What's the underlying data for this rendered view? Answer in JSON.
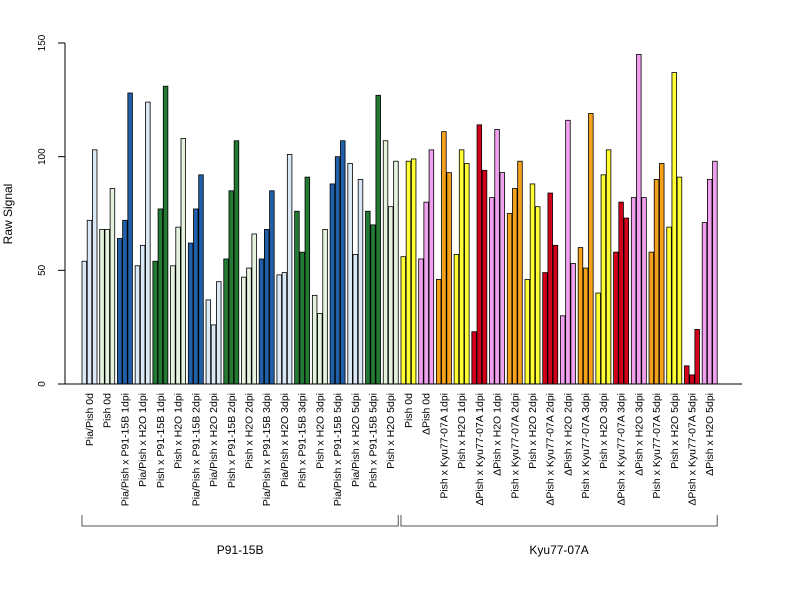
{
  "chart_data": {
    "type": "bar",
    "ylabel": "Raw Signal",
    "xlabel": "",
    "ylim": [
      0,
      150
    ],
    "yticks": [
      0,
      50,
      100,
      150
    ],
    "bars_per_group": 3,
    "categories": [
      "Pia/Pish 0d",
      "Pish 0d",
      "Pia/Pish x P91-15B 1dpi",
      "Pia/Pish x H2O 1dpi",
      "Pish x P91-15B 1dpi",
      "Pish x H2O 1dpi",
      "Pia/Pish x P91-15B 2dpi",
      "Pia/Pish x H2O 2dpi",
      "Pish x P91-15B 2dpi",
      "Pish x H2O 2dpi",
      "Pia/Pish x P91-15B 3dpi",
      "Pia/Pish x H2O 3dpi",
      "Pish x P91-15B 3dpi",
      "Pish x H2O 3dpi",
      "Pia/Pish x P91-15B 5dpi",
      "Pia/Pish x H2O 5dpi",
      "Pish x P91-15B 5dpi",
      "Pish x H2O 5dpi",
      "Pish 0d",
      "ΔPish 0d",
      "Pish x Kyu77-07A 1dpi",
      "Pish x H2O 1dpi",
      "ΔPish x Kyu77-07A 1dpi",
      "ΔPish x H2O 1dpi",
      "Pish x Kyu77-07A 2dpi",
      "Pish x H2O 2dpi",
      "ΔPish x Kyu77-07A 2dpi",
      "ΔPish x H2O 2dpi",
      "Pish x Kyu77-07A 3dpi",
      "Pish x H2O 3dpi",
      "ΔPish x Kyu77-07A 3dpi",
      "ΔPish x H2O 3dpi",
      "Pish x Kyu77-07A 5dpi",
      "Pish x H2O 5dpi",
      "ΔPish x Kyu77-07A 5dpi",
      "ΔPish x H2O 5dpi"
    ],
    "values": [
      [
        54,
        72,
        103
      ],
      [
        68,
        68,
        86
      ],
      [
        64,
        72,
        128
      ],
      [
        52,
        61,
        124
      ],
      [
        54,
        77,
        131
      ],
      [
        52,
        69,
        108
      ],
      [
        62,
        77,
        92
      ],
      [
        37,
        26,
        45
      ],
      [
        55,
        85,
        107
      ],
      [
        47,
        51,
        66
      ],
      [
        55,
        68,
        85
      ],
      [
        48,
        49,
        101
      ],
      [
        76,
        58,
        91
      ],
      [
        39,
        31,
        68
      ],
      [
        88,
        100,
        107
      ],
      [
        97,
        57,
        90
      ],
      [
        76,
        70,
        127
      ],
      [
        107,
        78,
        98
      ],
      [
        56,
        98,
        99
      ],
      [
        55,
        80,
        103
      ],
      [
        46,
        111,
        93
      ],
      [
        57,
        103,
        97
      ],
      [
        23,
        114,
        94
      ],
      [
        82,
        112,
        93
      ],
      [
        75,
        86,
        98
      ],
      [
        46,
        88,
        78
      ],
      [
        49,
        84,
        61
      ],
      [
        30,
        116,
        53
      ],
      [
        60,
        51,
        119
      ],
      [
        40,
        92,
        103
      ],
      [
        58,
        80,
        73
      ],
      [
        82,
        145,
        82
      ],
      [
        58,
        90,
        97
      ],
      [
        69,
        137,
        91
      ],
      [
        8,
        4,
        24
      ],
      [
        71,
        90,
        98
      ]
    ],
    "colors": [
      "#dbe8f6",
      "#e4f2de",
      "#2160a8",
      "#dbe8f6",
      "#237a33",
      "#e4f2de",
      "#2160a8",
      "#dbe8f6",
      "#237a33",
      "#e4f2de",
      "#2160a8",
      "#dbe8f6",
      "#237a33",
      "#e4f2de",
      "#2160a8",
      "#dbe8f6",
      "#237a33",
      "#e4f2de",
      "#ffff33",
      "#f0a0ee",
      "#f5a11a",
      "#ffff33",
      "#d2001a",
      "#f0a0ee",
      "#f5a11a",
      "#ffff33",
      "#d2001a",
      "#f0a0ee",
      "#f5a11a",
      "#ffff33",
      "#d2001a",
      "#f0a0ee",
      "#f5a11a",
      "#ffff33",
      "#d2001a",
      "#f0a0ee"
    ],
    "group_brackets": [
      {
        "label": "P91-15B",
        "from": 0,
        "to": 17
      },
      {
        "label": "Kyu77-07A",
        "from": 18,
        "to": 35
      }
    ],
    "grid": false,
    "legend": "none"
  }
}
